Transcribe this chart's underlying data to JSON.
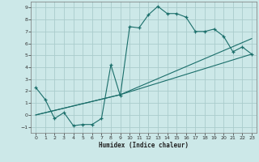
{
  "xlabel": "Humidex (Indice chaleur)",
  "bg_color": "#cce8e8",
  "grid_color": "#aacccc",
  "line_color": "#1a6e6a",
  "xlim": [
    -0.5,
    23.5
  ],
  "ylim": [
    -1.5,
    9.5
  ],
  "xticks": [
    0,
    1,
    2,
    3,
    4,
    5,
    6,
    7,
    8,
    9,
    10,
    11,
    12,
    13,
    14,
    15,
    16,
    17,
    18,
    19,
    20,
    21,
    22,
    23
  ],
  "yticks": [
    -1,
    0,
    1,
    2,
    3,
    4,
    5,
    6,
    7,
    8,
    9
  ],
  "line1_x": [
    0,
    1,
    2,
    3,
    4,
    5,
    6,
    7,
    8,
    9,
    10,
    11,
    12,
    13,
    14,
    15,
    16,
    17,
    18,
    19,
    20,
    21,
    22,
    23
  ],
  "line1_y": [
    2.3,
    1.3,
    -0.3,
    0.2,
    -0.9,
    -0.8,
    -0.8,
    -0.3,
    4.2,
    1.6,
    7.4,
    7.3,
    8.4,
    9.1,
    8.5,
    8.5,
    8.2,
    7.0,
    7.0,
    7.2,
    6.6,
    5.3,
    5.7,
    5.1
  ],
  "line2_x": [
    0,
    9,
    23
  ],
  "line2_y": [
    0.0,
    1.7,
    5.1
  ],
  "line3_x": [
    0,
    9,
    23
  ],
  "line3_y": [
    0.0,
    1.7,
    6.4
  ]
}
